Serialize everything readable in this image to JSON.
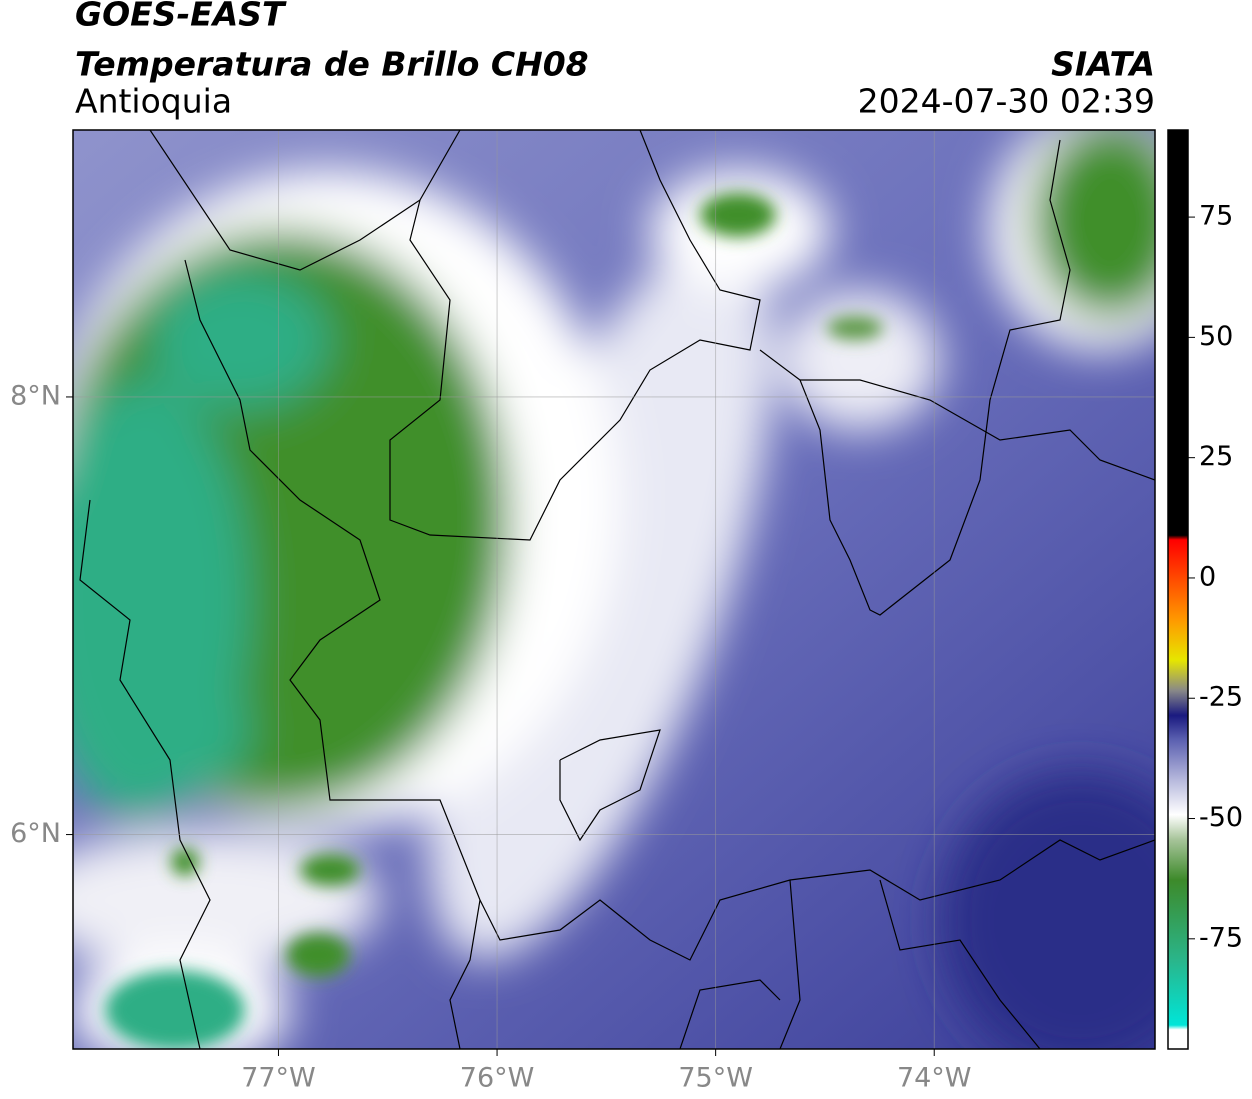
{
  "header": {
    "title": "GOES-EAST",
    "subtitle": "Temperatura de Brillo CH08",
    "region": "Antioquia",
    "source": "SIATA",
    "datetime": "2024-07-30 02:39"
  },
  "map": {
    "lonlim": [
      -77.94,
      -72.99
    ],
    "latlim": [
      5.02,
      9.22
    ],
    "lonticks": [
      {
        "value": -77,
        "label": "77°W"
      },
      {
        "value": -76,
        "label": "76°W"
      },
      {
        "value": -75,
        "label": "75°W"
      },
      {
        "value": -74,
        "label": "74°W"
      }
    ],
    "latticks": [
      {
        "value": 8,
        "label": "8°N"
      },
      {
        "value": 6,
        "label": "6°N"
      }
    ]
  },
  "colorbar": {
    "lim": [
      -97.9,
      93.1
    ],
    "ticks": [
      75,
      50,
      25,
      0,
      -25,
      -50,
      -75
    ]
  }
}
